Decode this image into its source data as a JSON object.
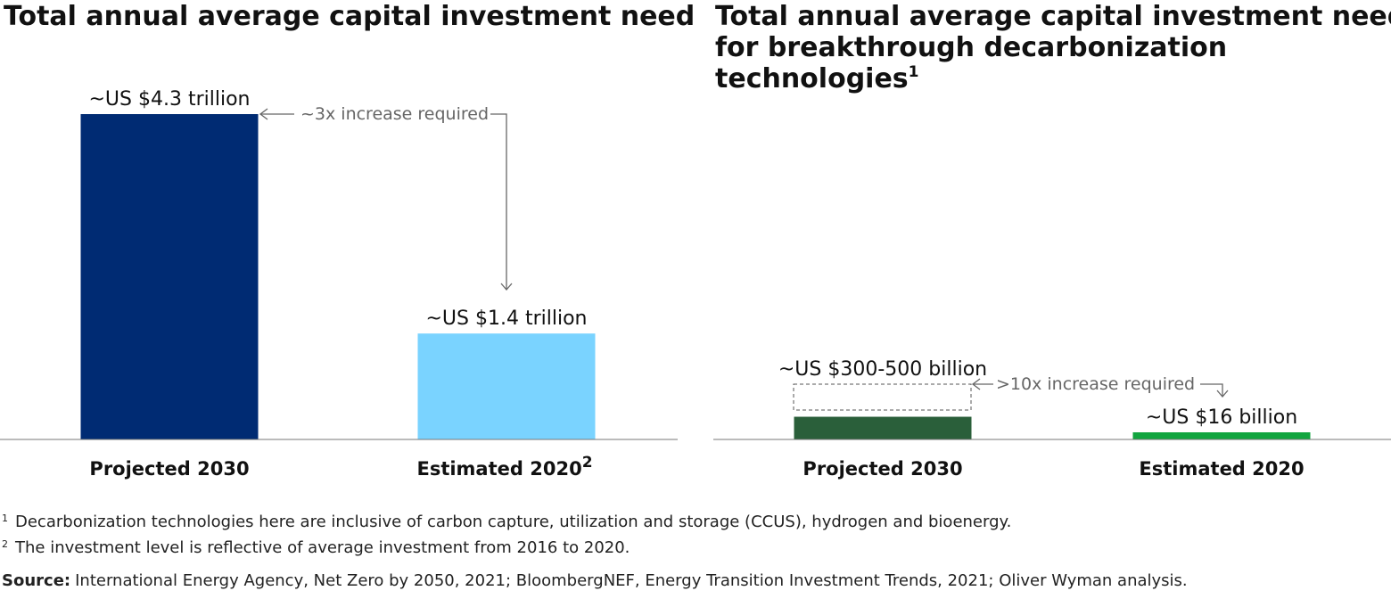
{
  "chart_data": [
    {
      "type": "bar",
      "title": "Total annual average capital investment need",
      "categories": [
        "Projected 2030",
        "Estimated 2020"
      ],
      "category_superscripts": [
        "",
        "2"
      ],
      "values": [
        4.3,
        1.4
      ],
      "unit": "trillion USD",
      "data_labels": [
        "~US $4.3 trillion",
        "~US $1.4 trillion"
      ],
      "colors": [
        "#002B73",
        "#7AD3FF"
      ],
      "ylim": [
        0,
        4.3
      ],
      "annotation": "~3x increase required",
      "grid": false
    },
    {
      "type": "bar",
      "title_lines": [
        "Total annual average capital investment need",
        "for breakthrough decarbonization",
        "technologies"
      ],
      "title_superscript": "1",
      "categories": [
        "Projected 2030",
        "Estimated 2020"
      ],
      "values": [
        300,
        16
      ],
      "range_high": [
        500,
        null
      ],
      "unit": "billion USD",
      "data_labels": [
        "~US $300-500 billion",
        "~US $16 billion"
      ],
      "colors": [
        "#2A5F3A",
        "#12A53F"
      ],
      "ylim": [
        0,
        4300
      ],
      "annotation": ">10x increase required",
      "grid": false
    }
  ],
  "footnotes": [
    {
      "num": "1",
      "text": "Decarbonization technologies here are inclusive of carbon capture, utilization and storage (CCUS), hydrogen and bioenergy."
    },
    {
      "num": "2",
      "text": "The investment level is reflective of average investment from 2016 to 2020."
    }
  ],
  "source": {
    "label": "Source:",
    "text": "International Energy Agency, Net Zero by 2050, 2021; BloombergNEF, Energy Transition Investment Trends, 2021; Oliver Wyman analysis."
  }
}
